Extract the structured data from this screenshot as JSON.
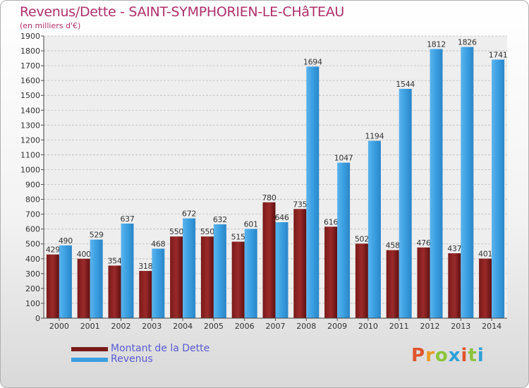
{
  "header": {
    "title": "Revenus/Dette - SAINT-SYMPHORIEN-LE-CHâTEAU",
    "subtitle": "(en milliers d'€)"
  },
  "legend": {
    "items": [
      {
        "label": "Montant de la Dette",
        "color": "#7a1a1a"
      },
      {
        "label": "Revenus",
        "color": "#3a9ee0"
      }
    ]
  },
  "logo": {
    "text": "Proxiti",
    "colors": [
      "#e0542e",
      "#e89a24",
      "#8cc43c",
      "#2ea0d8",
      "#e0542e",
      "#8cc43c",
      "#2ea0d8"
    ]
  },
  "chart_data": {
    "type": "bar",
    "categories": [
      "2000",
      "2001",
      "2002",
      "2003",
      "2004",
      "2005",
      "2006",
      "2007",
      "2008",
      "2009",
      "2010",
      "2011",
      "2012",
      "2013",
      "2014"
    ],
    "series": [
      {
        "name": "Montant de la Dette",
        "color": "#7a1a1a",
        "values": [
          429,
          400,
          354,
          318,
          550,
          550,
          515,
          780,
          735,
          616,
          502,
          458,
          476,
          437,
          401
        ]
      },
      {
        "name": "Revenus",
        "color": "#3a9ee0",
        "values": [
          490,
          529,
          637,
          468,
          672,
          632,
          601,
          646,
          1694,
          1047,
          1194,
          1544,
          1812,
          1826,
          1741
        ]
      }
    ],
    "ylim": [
      0,
      1900
    ],
    "ytick_step": 100,
    "grid": true,
    "legend_position": "bottom-left"
  }
}
